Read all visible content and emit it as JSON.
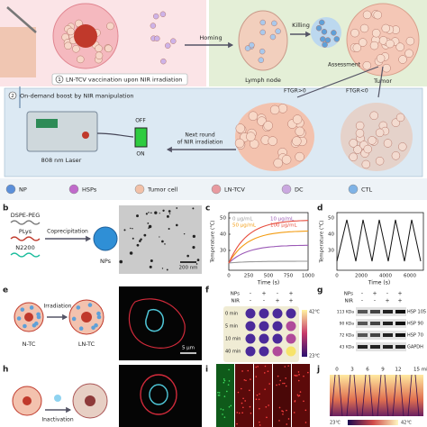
{
  "panel_a": {
    "step1_num": "1",
    "step1": "LN-TCV vaccination upon NIR irradiation",
    "homing": "Homing",
    "killing": "Killing",
    "lymph_node": "Lymph node",
    "tumor": "Tumor",
    "assessment": "Assessment",
    "step2_num": "2",
    "step2": "On-demand boost by NIR manipulation",
    "ftgr_pos": "FTGR>0",
    "ftgr_neg": "FTGR<0",
    "off": "OFF",
    "on": "ON",
    "laser": "808 nm Laser",
    "next_round": [
      "Next round",
      "of NIR irradiation"
    ],
    "legend": [
      "NP",
      "HSPs",
      "Tumor cell",
      "LN-TCV",
      "DC",
      "CTL"
    ]
  },
  "panel_b": {
    "label": "b",
    "components": [
      "DSPE-PEG",
      "PLys",
      "N2200"
    ],
    "method": "Coprecipitation",
    "product": "NPs",
    "scale": "200 nm"
  },
  "panel_c": {
    "label": "c",
    "y_label": "Temperature (℃)",
    "x_label": "Time (s)",
    "xticks": [
      "0",
      "250",
      "500",
      "750",
      "1000"
    ],
    "yticks": [
      "30",
      "40",
      "50"
    ],
    "legend": [
      "0 μg/mL",
      "10 μg/mL",
      "50 μg/mL",
      "100 μg/mL"
    ]
  },
  "panel_d": {
    "label": "d",
    "y_label": "Temperature (℃)",
    "x_label": "Time (s)",
    "xticks": [
      "0",
      "2000",
      "4000",
      "6000"
    ],
    "yticks": [
      "30",
      "40",
      "50"
    ]
  },
  "panel_e": {
    "label": "e",
    "arrow": "Irradiation",
    "before": "N-TC",
    "after": "LN-TC",
    "scale": "5 μm"
  },
  "panel_f": {
    "label": "f",
    "rows_header": [
      "NPs",
      "NIR"
    ],
    "nps": [
      "-",
      "+",
      "-",
      "+"
    ],
    "nir": [
      "-",
      "-",
      "+",
      "+"
    ],
    "times": [
      "0 min",
      "5 min",
      "10 min",
      "40 min"
    ],
    "bar_high": "42℃",
    "bar_low": "23℃"
  },
  "panel_g": {
    "label": "g",
    "rows_header": [
      "NPs",
      "NIR"
    ],
    "nps": [
      "-",
      "+",
      "-",
      "+"
    ],
    "nir": [
      "-",
      "-",
      "+",
      "+"
    ],
    "weights": [
      "113 KDa",
      "90 KDa",
      "72 KDa",
      "43 KDa"
    ],
    "proteins": [
      "HSP 105",
      "HSP 90",
      "HSP 70",
      "GAPDH"
    ]
  },
  "panel_h": {
    "label": "h",
    "arrow": "Inactivation"
  },
  "panel_i": {
    "label": "i"
  },
  "panel_j": {
    "label": "j",
    "times": [
      "0",
      "3",
      "6",
      "9",
      "12",
      "15 min"
    ],
    "bar_low": "23℃",
    "bar_high": "42℃"
  }
}
